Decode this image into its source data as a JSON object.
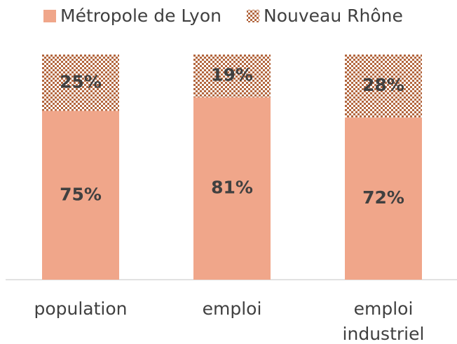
{
  "chart_data": {
    "type": "stacked_bar",
    "categories": [
      "population",
      "emploi",
      "emploi industriel"
    ],
    "series": [
      {
        "name": "Métropole de Lyon",
        "color": "#f0a68a",
        "values": [
          75,
          81,
          72
        ],
        "value_labels": [
          "75%",
          "81%",
          "72%"
        ]
      },
      {
        "name": "Nouveau Rhône",
        "color": "#b3673f",
        "pattern": "checker",
        "values": [
          25,
          19,
          28
        ],
        "value_labels": [
          "25%",
          "19%",
          "28%"
        ]
      }
    ],
    "ylim": [
      0,
      100
    ],
    "legend": "top"
  }
}
